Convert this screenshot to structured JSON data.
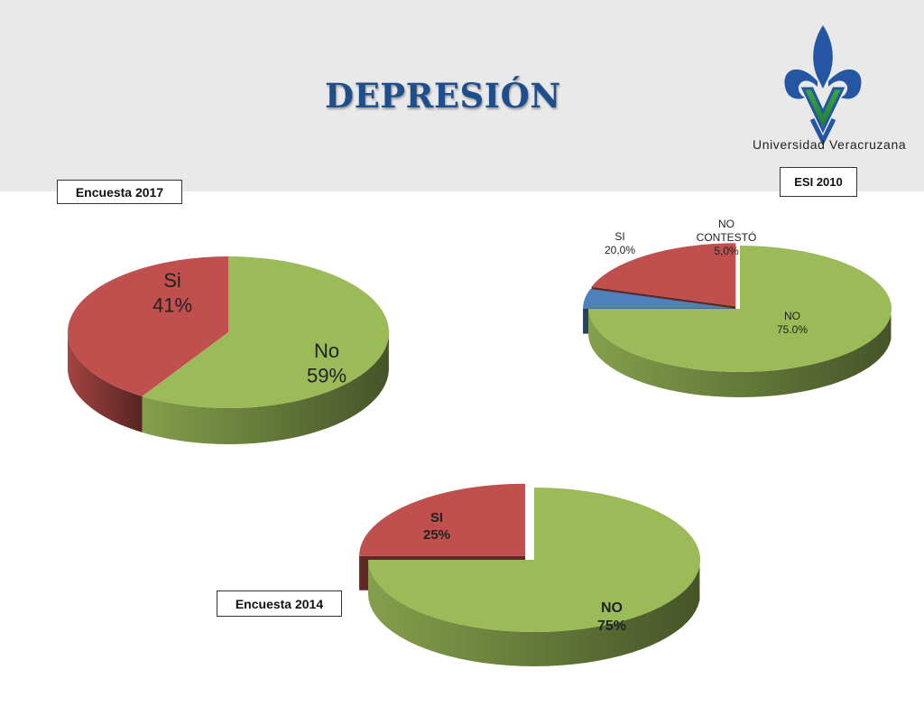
{
  "title": "DEPRESIÓN",
  "logo": {
    "caption": "Universidad Veracruzana"
  },
  "colors": {
    "green": "#9bbb59",
    "red": "#c0504d",
    "blue": "#4f81bd",
    "title": "#1f4e8c"
  },
  "chart_data": [
    {
      "type": "pie",
      "label": "Encuesta  2017",
      "categories": [
        "Si",
        "No"
      ],
      "values": [
        41,
        59
      ],
      "value_labels": [
        "41%",
        "59%"
      ],
      "legend": "none"
    },
    {
      "type": "pie",
      "label": "ESI 2010",
      "categories": [
        "SI",
        "NO CONTESTÓ",
        "NO"
      ],
      "values": [
        20.0,
        5.0,
        75.0
      ],
      "value_labels": [
        "20,0%",
        "5,0%",
        "75.0%"
      ],
      "legend": "none"
    },
    {
      "type": "pie",
      "label": "Encuesta  2014",
      "categories": [
        "SI",
        "NO"
      ],
      "values": [
        25,
        75
      ],
      "value_labels": [
        "25%",
        "75%"
      ],
      "legend": "none"
    }
  ]
}
